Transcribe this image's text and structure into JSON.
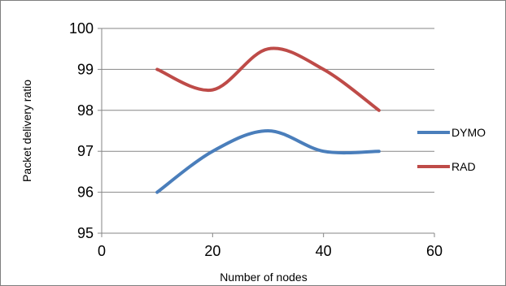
{
  "chart_data": {
    "type": "line",
    "xlabel": "Number of nodes",
    "ylabel": "Packet delivery ratio",
    "xlim": [
      0,
      60
    ],
    "ylim": [
      95,
      100
    ],
    "x_ticks": [
      0,
      20,
      40,
      60
    ],
    "y_ticks": [
      95,
      96,
      97,
      98,
      99,
      100
    ],
    "grid": "horizontal",
    "legend_position": "right",
    "smooth": true,
    "series": [
      {
        "name": "DYMO",
        "color": "#4a7ebb",
        "x": [
          10,
          20,
          30,
          40,
          50
        ],
        "y": [
          96,
          97,
          97.5,
          97,
          97
        ]
      },
      {
        "name": "RAD",
        "color": "#be4b48",
        "x": [
          10,
          20,
          30,
          40,
          50
        ],
        "y": [
          99,
          98.5,
          99.5,
          99,
          98
        ]
      }
    ]
  }
}
